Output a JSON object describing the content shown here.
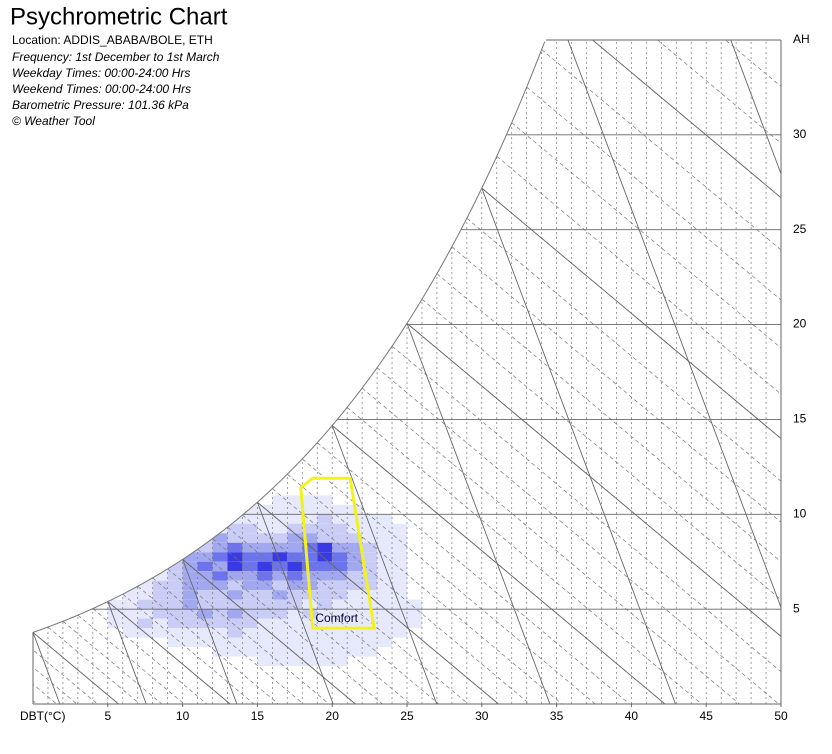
{
  "header": {
    "title": "Psychrometric Chart",
    "location": "Location: ADDIS_ABABA/BOLE, ETH",
    "info": [
      "Frequency: 1st December to 1st March",
      "Weekday Times: 00:00-24:00 Hrs",
      "Weekend Times: 00:00-24:00 Hrs"
    ],
    "pressure_label": "Barometric Pressure:",
    "pressure": 101.36,
    "pressure_unit": "kPa",
    "credit": "© Weather Tool"
  },
  "chart_data": {
    "type": "psychrometric",
    "x_label": "DBT(°C)",
    "y_label": "AH",
    "xlim": [
      0,
      50
    ],
    "ylim": [
      0,
      35
    ],
    "xticks": [
      5,
      10,
      15,
      20,
      25,
      30,
      35,
      40,
      45,
      50
    ],
    "yticks": [
      5,
      10,
      15,
      20,
      25,
      30
    ],
    "cell_colors": [
      "#e6e8fb",
      "#c9cdf6",
      "#a2a8f0",
      "#6d73ea",
      "#3a3ae4"
    ],
    "cells": [
      {
        "ah": 10.5,
        "t_start": 16,
        "values": [
          1,
          1,
          1,
          1
        ]
      },
      {
        "ah": 10,
        "t_start": 14,
        "values": [
          1,
          1,
          1,
          1,
          1,
          1,
          1,
          1
        ]
      },
      {
        "ah": 9.5,
        "t_start": 13,
        "values": [
          1,
          1,
          1,
          1,
          1,
          1,
          2,
          1,
          1,
          1,
          1
        ]
      },
      {
        "ah": 9,
        "t_start": 12,
        "values": [
          1,
          2,
          2,
          1,
          1,
          2,
          2,
          2,
          2,
          1,
          1,
          1,
          1
        ]
      },
      {
        "ah": 8.5,
        "t_start": 10,
        "values": [
          1,
          2,
          3,
          2,
          2,
          2,
          2,
          3,
          3,
          2,
          2,
          2,
          1,
          1,
          1
        ]
      },
      {
        "ah": 8,
        "t_start": 9,
        "values": [
          1,
          2,
          2,
          3,
          4,
          3,
          3,
          3,
          3,
          4,
          5,
          3,
          3,
          2,
          1,
          1
        ]
      },
      {
        "ah": 7.5,
        "t_start": 8,
        "values": [
          1,
          2,
          3,
          3,
          4,
          5,
          4,
          4,
          5,
          4,
          4,
          5,
          4,
          3,
          2,
          1,
          1
        ]
      },
      {
        "ah": 7,
        "t_start": 8,
        "values": [
          1,
          2,
          3,
          4,
          3,
          5,
          4,
          5,
          4,
          5,
          4,
          4,
          4,
          3,
          2,
          1,
          1
        ]
      },
      {
        "ah": 6.5,
        "t_start": 7,
        "values": [
          1,
          1,
          2,
          3,
          3,
          4,
          3,
          3,
          4,
          3,
          4,
          3,
          3,
          3,
          2,
          2,
          1,
          1
        ]
      },
      {
        "ah": 6,
        "t_start": 6,
        "values": [
          1,
          1,
          2,
          2,
          3,
          3,
          3,
          2,
          3,
          3,
          2,
          3,
          3,
          2,
          2,
          2,
          2,
          1,
          1
        ]
      },
      {
        "ah": 5.5,
        "t_start": 6,
        "values": [
          1,
          1,
          2,
          2,
          3,
          2,
          2,
          3,
          2,
          2,
          3,
          2,
          2,
          2,
          2,
          1,
          1,
          1,
          1
        ]
      },
      {
        "ah": 5,
        "t_start": 5,
        "values": [
          1,
          1,
          2,
          2,
          2,
          3,
          2,
          2,
          2,
          2,
          2,
          2,
          2,
          1,
          2,
          1,
          1,
          1,
          1,
          1,
          1
        ]
      },
      {
        "ah": 4.5,
        "t_start": 5,
        "values": [
          1,
          1,
          1,
          2,
          2,
          2,
          3,
          2,
          3,
          2,
          2,
          2,
          1,
          2,
          1,
          1,
          1,
          1,
          1,
          1,
          1
        ]
      },
      {
        "ah": 4,
        "t_start": 5,
        "values": [
          1,
          1,
          2,
          1,
          2,
          2,
          2,
          2,
          2,
          2,
          1,
          1,
          1,
          1,
          1,
          1,
          1,
          1,
          1,
          1,
          1
        ]
      },
      {
        "ah": 3.5,
        "t_start": 6,
        "values": [
          1,
          1,
          1,
          1,
          1,
          1,
          1,
          2,
          1,
          1,
          1,
          1,
          1,
          1,
          1,
          1,
          1,
          1,
          1
        ]
      },
      {
        "ah": 3,
        "t_start": 9,
        "values": [
          1,
          1,
          1,
          1,
          1,
          1,
          1,
          1,
          1,
          1,
          1,
          1,
          1,
          1,
          1
        ]
      },
      {
        "ah": 2.5,
        "t_start": 12,
        "values": [
          1,
          1,
          1,
          1,
          1,
          1,
          1,
          1,
          1,
          1,
          1
        ]
      },
      {
        "ah": 2,
        "t_start": 15,
        "values": [
          1,
          1,
          1,
          1,
          1,
          1
        ]
      }
    ],
    "comfort": {
      "label": "Comfort",
      "color": "#f2f21e",
      "t": [
        17.9,
        18.7,
        21.2,
        22.8,
        18.7
      ],
      "ah": [
        11.4,
        11.9,
        11.9,
        4.0,
        4.0
      ]
    }
  }
}
